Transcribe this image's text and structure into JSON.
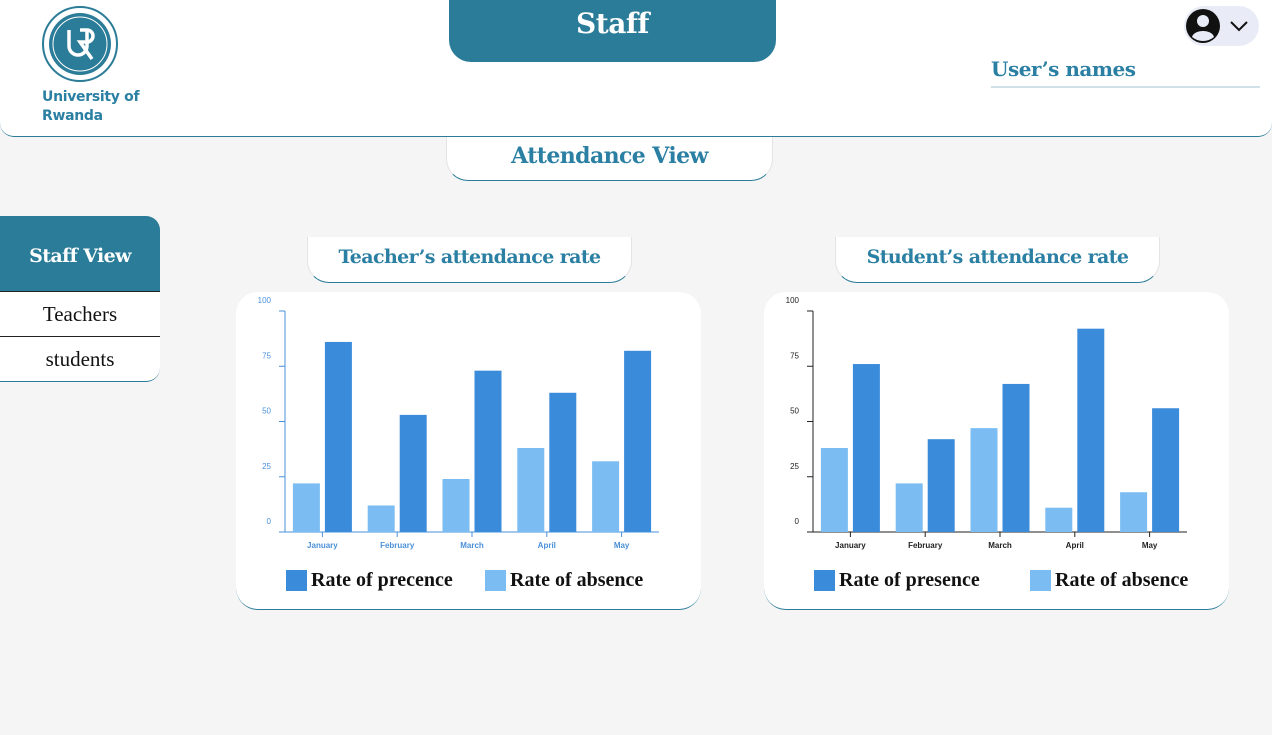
{
  "header": {
    "logo_text": "University of Rwanda",
    "section_title": "Staff",
    "user_name": "User’s names"
  },
  "page": {
    "view_title": "Attendance View"
  },
  "sidebar": {
    "title": "Staff View",
    "items": [
      {
        "label": "Teachers"
      },
      {
        "label": "students"
      }
    ]
  },
  "colors": {
    "brand": "#2b7c98",
    "presence": "#3b8bdb",
    "absence": "#7bbdf2",
    "background": "#f5f5f5"
  },
  "icons": {
    "avatar": "account-circle-icon",
    "chevron": "chevron-down-icon",
    "logo": "university-seal-logo"
  },
  "charts": {
    "teacher": {
      "title": "Teacher’s attendance rate",
      "legend_presence": "Rate of precence",
      "legend_absence": "Rate of absence"
    },
    "student": {
      "title": "Student’s attendance rate",
      "legend_presence": "Rate of presence",
      "legend_absence": "Rate of absence"
    }
  },
  "chart_data": [
    {
      "type": "bar",
      "title": "Teacher’s attendance rate",
      "categories": [
        "January",
        "February",
        "March",
        "April",
        "May"
      ],
      "series": [
        {
          "name": "Rate of absence",
          "values": [
            22,
            12,
            24,
            38,
            32
          ]
        },
        {
          "name": "Rate of precence",
          "values": [
            86,
            53,
            73,
            63,
            82
          ]
        }
      ],
      "ylim": [
        0,
        100
      ],
      "yticks": [
        0,
        25,
        50,
        75,
        100
      ],
      "grid": false,
      "legend_position": "bottom",
      "tick_color": "#4a90d9"
    },
    {
      "type": "bar",
      "title": "Student’s attendance rate",
      "categories": [
        "January",
        "February",
        "March",
        "April",
        "May"
      ],
      "series": [
        {
          "name": "Rate of absence",
          "values": [
            38,
            22,
            47,
            11,
            18
          ]
        },
        {
          "name": "Rate of presence",
          "values": [
            76,
            42,
            67,
            92,
            56
          ]
        }
      ],
      "ylim": [
        0,
        100
      ],
      "yticks": [
        0,
        25,
        50,
        75,
        100
      ],
      "grid": false,
      "legend_position": "bottom",
      "tick_color": "#222222"
    }
  ]
}
